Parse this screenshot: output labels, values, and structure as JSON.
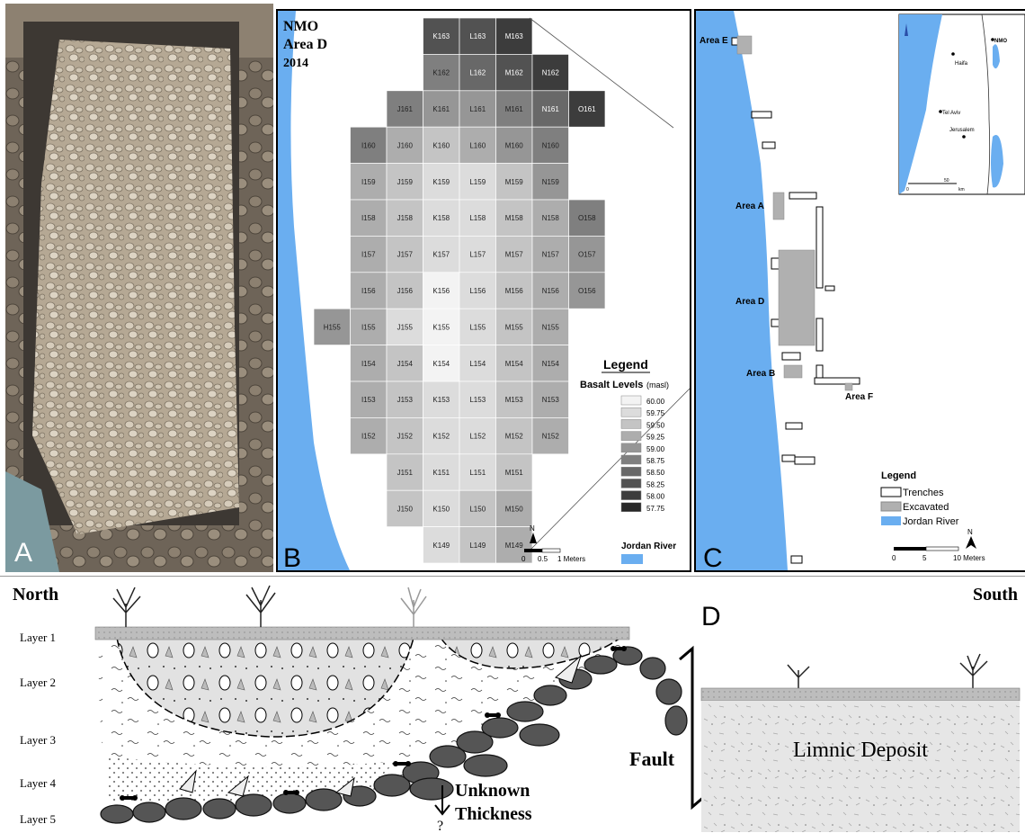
{
  "panelA": {
    "letter": "A"
  },
  "panelB": {
    "letter": "B",
    "title": [
      "NMO",
      "Area D",
      "2014"
    ],
    "legend_title": "Legend",
    "basalt_title": "Basalt Levels",
    "basalt_unit": "(masl)",
    "levels": [
      {
        "label": "60.00",
        "color": "#f3f3f3"
      },
      {
        "label": "59.75",
        "color": "#dcdcdc"
      },
      {
        "label": "59.50",
        "color": "#c4c4c4"
      },
      {
        "label": "59.25",
        "color": "#adadad"
      },
      {
        "label": "59.00",
        "color": "#969696"
      },
      {
        "label": "58.75",
        "color": "#7f7f7f"
      },
      {
        "label": "58.50",
        "color": "#686868"
      },
      {
        "label": "58.25",
        "color": "#525252"
      },
      {
        "label": "58.00",
        "color": "#3c3c3c"
      },
      {
        "label": "57.75",
        "color": "#262626"
      }
    ],
    "river_label": "Jordan River",
    "river_color": "#6aaef0",
    "scale_ticks": [
      "0",
      "0.5",
      "1 Meters"
    ],
    "north": "N",
    "grid": {
      "columns": [
        "H",
        "I",
        "J",
        "K",
        "L",
        "M",
        "N",
        "O"
      ],
      "rows": [
        163,
        162,
        161,
        160,
        159,
        158,
        157,
        156,
        155,
        154,
        153,
        152,
        151,
        150,
        149
      ],
      "cells": {
        "163": [
          "K",
          "L",
          "M"
        ],
        "162": [
          "K",
          "L",
          "M",
          "N"
        ],
        "161": [
          "J",
          "K",
          "L",
          "M",
          "N",
          "O"
        ],
        "160": [
          "I",
          "J",
          "K",
          "L",
          "M",
          "N"
        ],
        "159": [
          "I",
          "J",
          "K",
          "L",
          "M",
          "N"
        ],
        "158": [
          "I",
          "J",
          "K",
          "L",
          "M",
          "N",
          "O"
        ],
        "157": [
          "I",
          "J",
          "K",
          "L",
          "M",
          "N",
          "O"
        ],
        "156": [
          "I",
          "J",
          "K",
          "L",
          "M",
          "N",
          "O"
        ],
        "155": [
          "H",
          "I",
          "J",
          "K",
          "L",
          "M",
          "N"
        ],
        "154": [
          "I",
          "J",
          "K",
          "L",
          "M",
          "N"
        ],
        "153": [
          "I",
          "J",
          "K",
          "L",
          "M",
          "N"
        ],
        "152": [
          "I",
          "J",
          "K",
          "L",
          "M",
          "N"
        ],
        "151": [
          "J",
          "K",
          "L",
          "M"
        ],
        "150": [
          "J",
          "K",
          "L",
          "M"
        ],
        "149": [
          "K",
          "L",
          "M"
        ]
      }
    }
  },
  "panelC": {
    "letter": "C",
    "areas": [
      "Area E",
      "Area A",
      "Area D",
      "Area B",
      "Area F"
    ],
    "legend_title": "Legend",
    "legend_items": [
      {
        "label": "Trenches",
        "color": "#ffffff"
      },
      {
        "label": "Excavated",
        "color": "#b0b0b0"
      },
      {
        "label": "Jordan River",
        "color": "#6aaef0"
      }
    ],
    "scale_ticks": [
      "0",
      "5",
      "10 Meters"
    ],
    "north": "N",
    "inset": {
      "places": [
        "NMO",
        "Haifa",
        "Tel Aviv",
        "Jerusalem"
      ],
      "scale": [
        "0",
        "50",
        "km"
      ]
    }
  },
  "panelD": {
    "letter": "D",
    "north": "North",
    "south": "South",
    "layers": [
      "Layer 1",
      "Layer 2",
      "Layer 3",
      "Layer 4",
      "Layer 5"
    ],
    "fault": "Fault",
    "unknown": [
      "Unknown",
      "Thickness"
    ],
    "question": "?",
    "limnic": "Limnic Deposit"
  }
}
